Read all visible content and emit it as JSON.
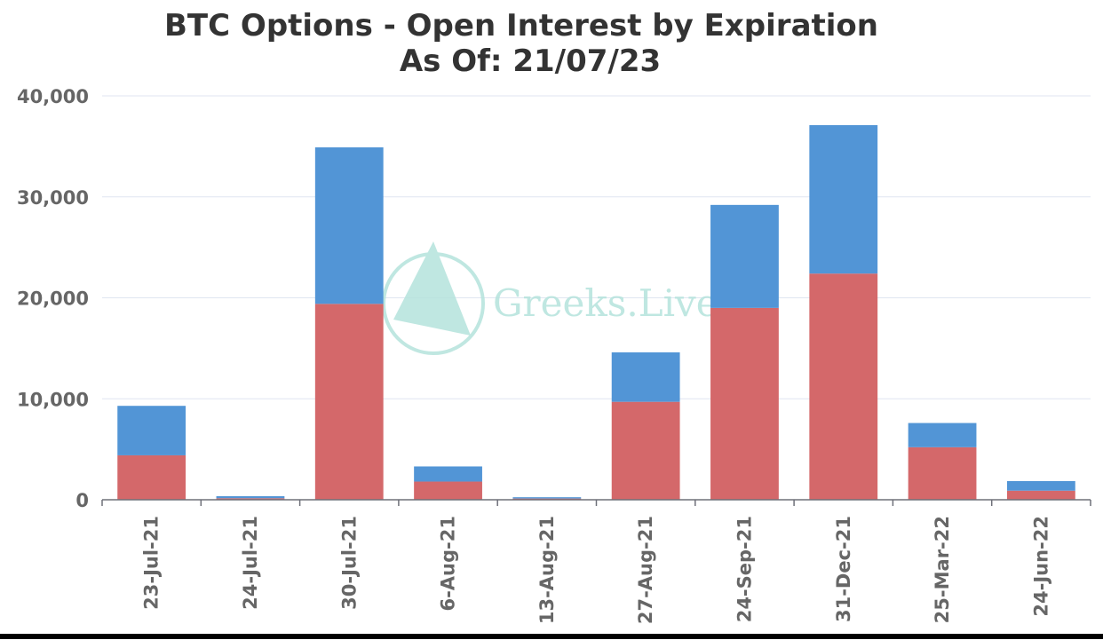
{
  "chart_data": {
    "type": "bar",
    "stacked": true,
    "title": "BTC Options - Open Interest by Expiration",
    "subtitle": "As Of: 21/07/23",
    "xlabel": "",
    "ylabel": "",
    "categories": [
      "23-Jul-21",
      "24-Jul-21",
      "30-Jul-21",
      "6-Aug-21",
      "13-Aug-21",
      "27-Aug-21",
      "24-Sep-21",
      "31-Dec-21",
      "25-Mar-22",
      "24-Jun-22"
    ],
    "ylim": [
      0,
      40000
    ],
    "yticks": [
      0,
      10000,
      20000,
      30000,
      40000
    ],
    "ytick_labels": [
      "0",
      "10,000",
      "20,000",
      "30,000",
      "40,000"
    ],
    "grid": true,
    "legend": "none",
    "series": [
      {
        "color": "#d4686a",
        "values": [
          4400,
          150,
          19400,
          1800,
          120,
          9700,
          19000,
          22400,
          5200,
          900
        ]
      },
      {
        "color": "#5295d6",
        "values": [
          4900,
          200,
          15500,
          1500,
          130,
          4900,
          10200,
          14700,
          2400,
          950
        ]
      }
    ]
  },
  "watermark": {
    "text": "Greeks.Live",
    "color": "#b5e3dc"
  }
}
